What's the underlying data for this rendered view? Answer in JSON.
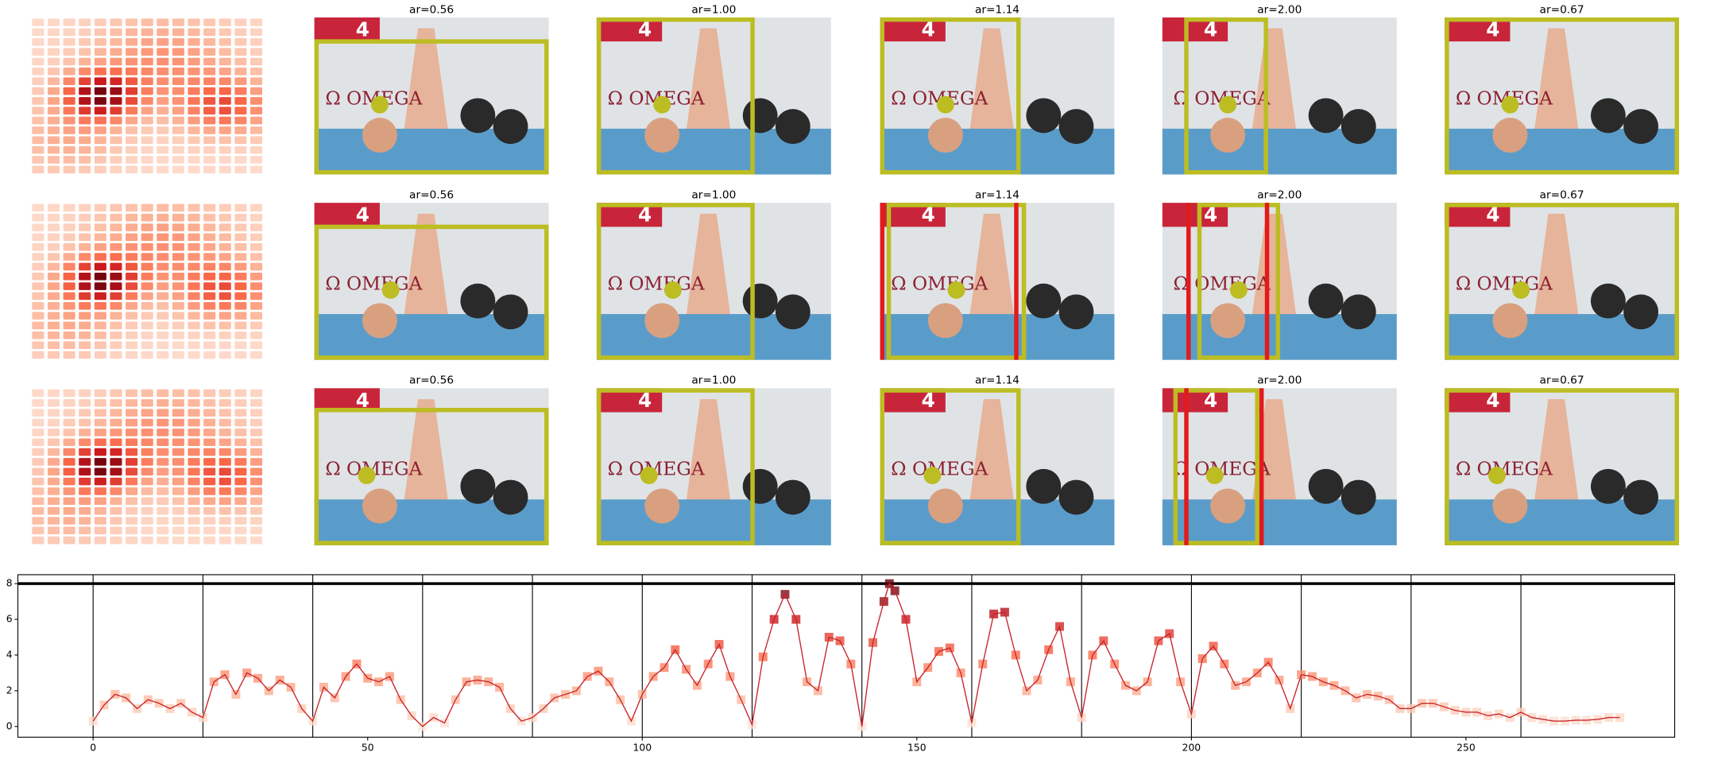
{
  "panels": {
    "rows": [
      {
        "titles": [
          "ar=0.56",
          "ar=1.00",
          "ar=1.14",
          "ar=2.00",
          "ar=0.67"
        ]
      },
      {
        "titles": [
          "ar=0.56",
          "ar=1.00",
          "ar=1.14",
          "ar=2.00",
          "ar=0.67"
        ]
      },
      {
        "titles": [
          "ar=0.56",
          "ar=1.00",
          "ar=1.14",
          "ar=2.00",
          "ar=0.67"
        ]
      }
    ]
  },
  "photo": {
    "sign": "4",
    "brand": "Ω OMEGA"
  },
  "chart_data": {
    "type": "line",
    "x": [
      0,
      2,
      4,
      6,
      8,
      10,
      12,
      14,
      16,
      18,
      20,
      22,
      24,
      26,
      28,
      30,
      32,
      34,
      36,
      38,
      40,
      42,
      44,
      46,
      48,
      50,
      52,
      54,
      56,
      58,
      60,
      62,
      64,
      66,
      68,
      70,
      72,
      74,
      76,
      78,
      80,
      82,
      84,
      86,
      88,
      90,
      92,
      94,
      96,
      98,
      100,
      102,
      104,
      106,
      108,
      110,
      112,
      114,
      116,
      118,
      120,
      122,
      124,
      126,
      128,
      130,
      132,
      134,
      136,
      138,
      140,
      142,
      144,
      145,
      146,
      148,
      150,
      152,
      154,
      156,
      158,
      160,
      162,
      164,
      166,
      168,
      170,
      172,
      174,
      176,
      178,
      180,
      182,
      184,
      186,
      188,
      190,
      192,
      194,
      196,
      198,
      200,
      202,
      204,
      206,
      208,
      210,
      212,
      214,
      216,
      218,
      220,
      222,
      224,
      226,
      228,
      230,
      232,
      234,
      236,
      238,
      240,
      242,
      244,
      246,
      248,
      250,
      252,
      254,
      256,
      258,
      260,
      262,
      264,
      266,
      268,
      270,
      272,
      274,
      276,
      278
    ],
    "values": [
      0.3,
      1.2,
      1.8,
      1.6,
      1.0,
      1.5,
      1.3,
      1.0,
      1.3,
      0.8,
      0.5,
      2.5,
      2.9,
      1.8,
      3.0,
      2.7,
      2.0,
      2.6,
      2.2,
      1.0,
      0.3,
      2.2,
      1.6,
      2.8,
      3.5,
      2.7,
      2.5,
      2.8,
      1.5,
      0.6,
      0.0,
      0.5,
      0.2,
      1.5,
      2.5,
      2.6,
      2.5,
      2.2,
      1.0,
      0.3,
      0.5,
      1.0,
      1.6,
      1.8,
      2.0,
      2.8,
      3.1,
      2.5,
      1.5,
      0.3,
      1.8,
      2.8,
      3.3,
      4.3,
      3.2,
      2.3,
      3.5,
      4.6,
      2.8,
      1.5,
      0.1,
      3.9,
      6.0,
      7.4,
      6.0,
      2.5,
      2.0,
      5.0,
      4.8,
      3.5,
      0.0,
      4.7,
      7.0,
      8.0,
      7.6,
      6.0,
      2.5,
      3.3,
      4.2,
      4.4,
      3.0,
      0.2,
      3.5,
      6.3,
      6.4,
      4.0,
      2.0,
      2.6,
      4.3,
      5.6,
      2.5,
      0.5,
      4.0,
      4.8,
      3.5,
      2.3,
      2.0,
      2.5,
      4.8,
      5.2,
      2.5,
      0.7,
      3.8,
      4.5,
      3.5,
      2.3,
      2.5,
      3.0,
      3.6,
      2.6,
      1.0,
      2.9,
      2.8,
      2.5,
      2.3,
      2.0,
      1.6,
      1.8,
      1.7,
      1.5,
      1.0,
      1.0,
      1.3,
      1.3,
      1.1,
      0.9,
      0.8,
      0.8,
      0.6,
      0.7,
      0.5,
      0.8,
      0.5,
      0.4,
      0.3,
      0.3,
      0.35,
      0.35,
      0.4,
      0.5,
      0.5
    ],
    "color": "#c8262b",
    "colormap": [
      "#fee5d9",
      "#fcae91",
      "#fb6a4a",
      "#cb181d",
      "#67000d"
    ],
    "xlim": [
      -13.7,
      288
    ],
    "ylim": [
      -0.6,
      8.5
    ],
    "xticks": [
      0,
      50,
      100,
      150,
      200,
      250
    ],
    "yticks": [
      0,
      2,
      4,
      6,
      8
    ],
    "vlines": [
      0,
      20,
      40,
      60,
      80,
      100,
      120,
      140,
      160,
      180,
      200,
      220,
      240,
      260
    ],
    "hline": 8
  }
}
